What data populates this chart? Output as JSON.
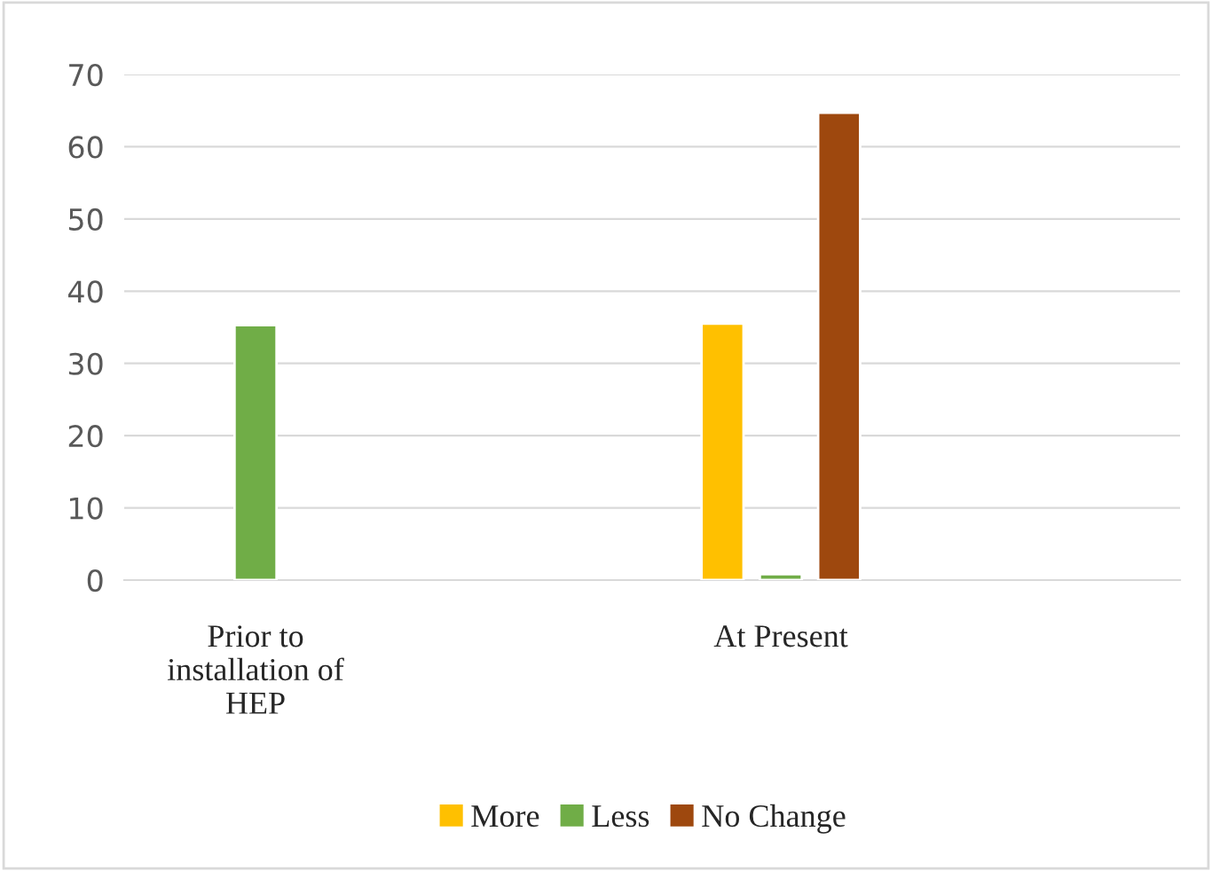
{
  "chart_data": {
    "type": "bar",
    "categories": [
      "Prior to\ninstallation of\nHEP",
      "At Present"
    ],
    "series": [
      {
        "name": "More",
        "color": "#ffc000",
        "values": [
          null,
          35.5
        ]
      },
      {
        "name": "Less",
        "color": "#70ad47",
        "values": [
          35.3,
          0.8
        ]
      },
      {
        "name": "No Change",
        "color": "#9e480e",
        "values": [
          null,
          64.7
        ]
      }
    ],
    "ylim": [
      0,
      70
    ],
    "yticks": [
      0,
      10,
      20,
      30,
      40,
      50,
      60,
      70
    ],
    "grid": "y",
    "legend": "bottom"
  }
}
